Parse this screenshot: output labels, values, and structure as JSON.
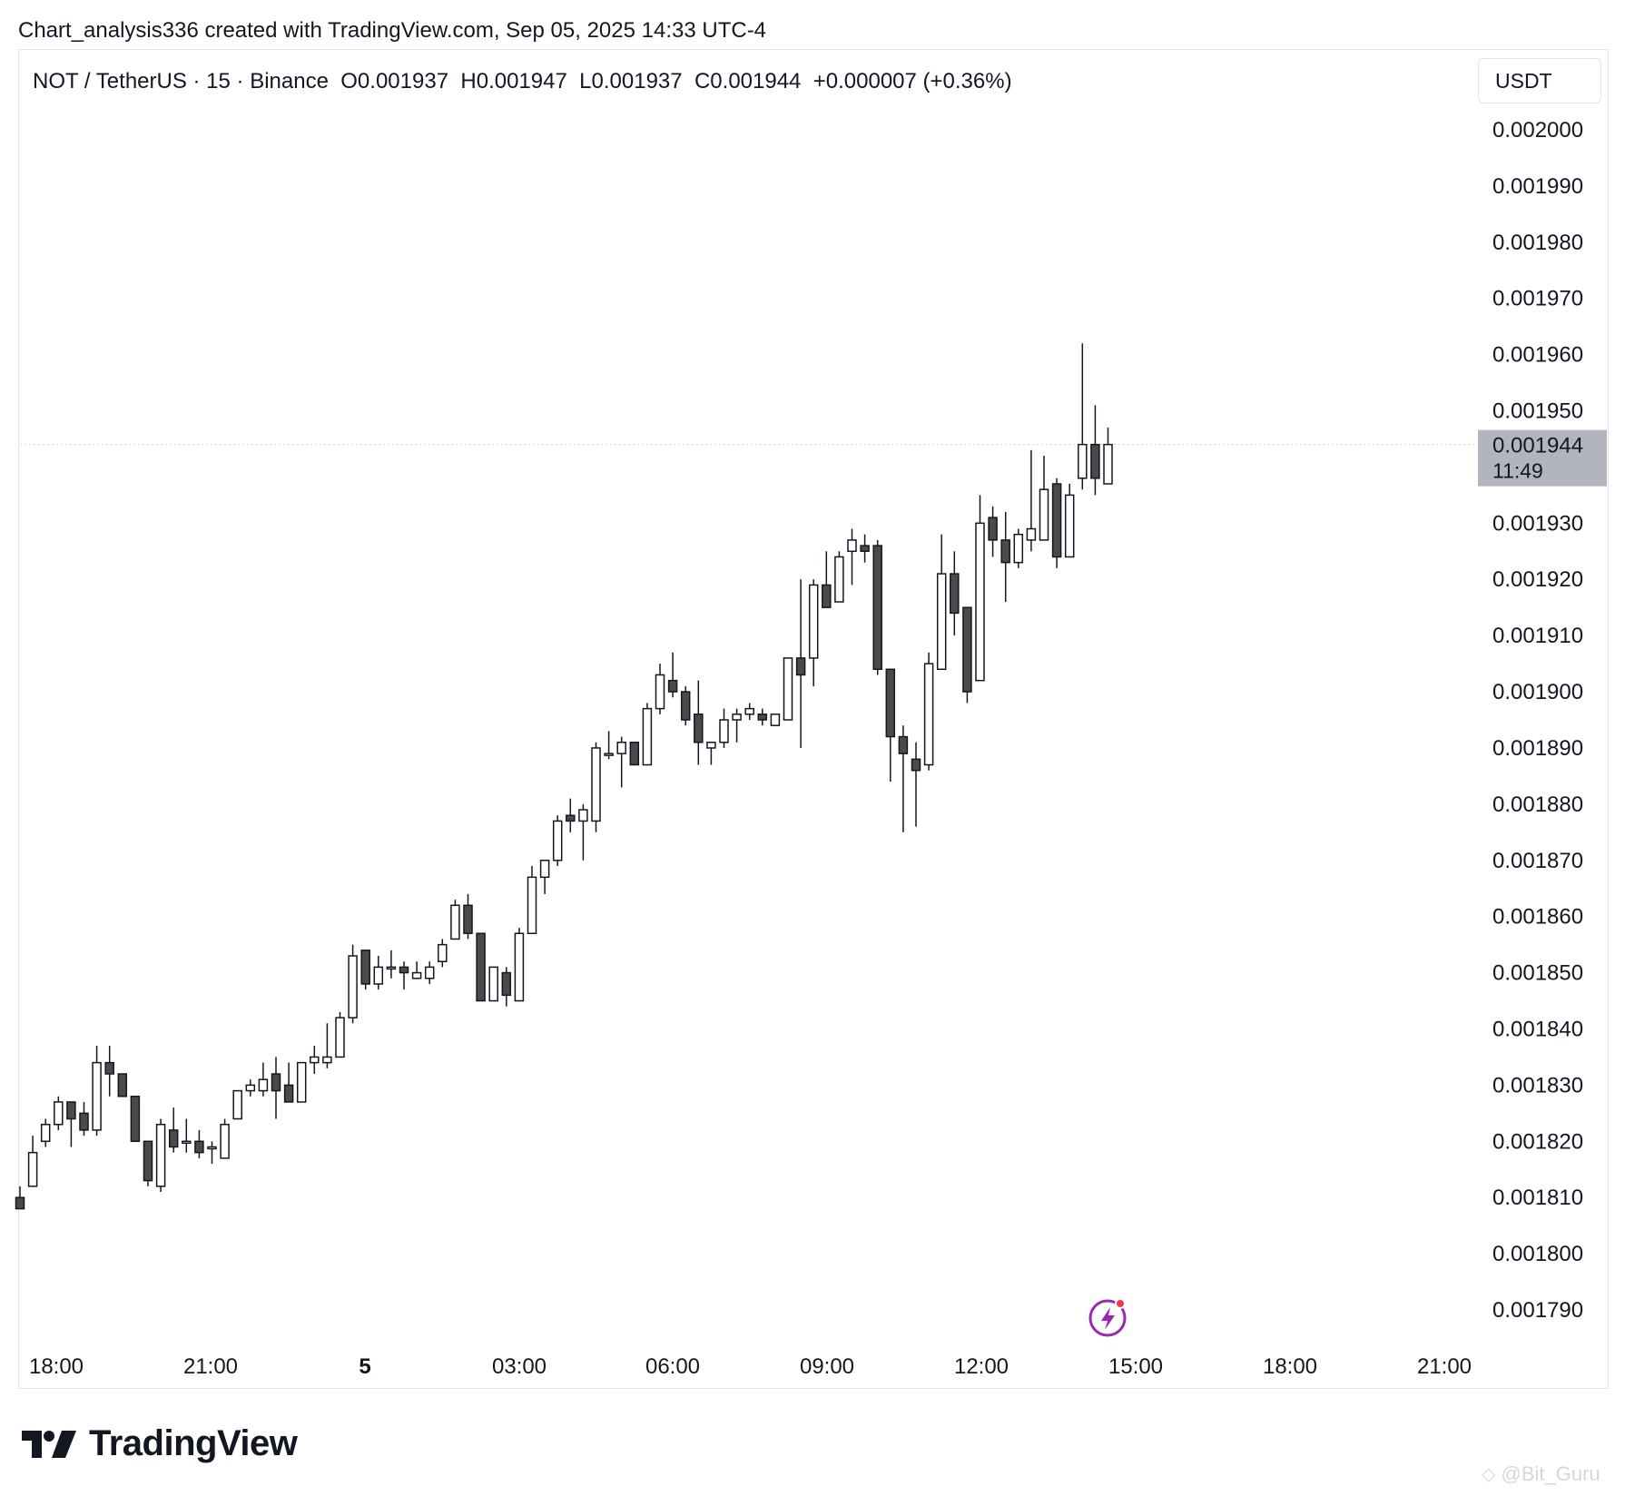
{
  "header": {
    "credit": "Chart_analysis336 created with TradingView.com, Sep 05, 2025 14:33 UTC-4"
  },
  "legend": {
    "symbol": "NOT / TetherUS · 15 · Binance",
    "open": "O0.001937",
    "high": "H0.001947",
    "low": "L0.001937",
    "close": "C0.001944",
    "change": "+0.000007 (+0.36%)"
  },
  "currency_label": "USDT",
  "price_tag": {
    "price": "0.001944",
    "countdown": "11:49"
  },
  "footer": {
    "brand": "TradingView",
    "watermark": "@Bit_Guru"
  },
  "icons": {
    "logo": "tradingview-logo-icon",
    "bolt": "lightning-bolt-icon"
  },
  "colors": {
    "up_fill": "#ffffff",
    "down_fill": "#4a4a4a",
    "outline": "#131722",
    "price_tag_bg": "#b2b5be",
    "bolt_accent": "#9c27b0",
    "bolt_dot": "#f23645"
  },
  "chart_data": {
    "type": "candlestick",
    "timeframe": "15",
    "ylim": [
      0.001785,
      0.002003
    ],
    "y_ticks": [
      "0.002000",
      "0.001990",
      "0.001980",
      "0.001970",
      "0.001960",
      "0.001950",
      "0.001930",
      "0.001920",
      "0.001910",
      "0.001900",
      "0.001890",
      "0.001880",
      "0.001870",
      "0.001860",
      "0.001850",
      "0.001840",
      "0.001830",
      "0.001820",
      "0.001810",
      "0.001800",
      "0.001790"
    ],
    "x_ticks": [
      "18:00",
      "21:00",
      "5",
      "03:00",
      "06:00",
      "09:00",
      "12:00",
      "15:00",
      "18:00",
      "21:00"
    ],
    "grid": false,
    "last_price": 0.001944,
    "candles": [
      {
        "o": 0.00181,
        "h": 0.001812,
        "l": 0.001808,
        "c": 0.001808
      },
      {
        "o": 0.001812,
        "h": 0.001821,
        "l": 0.001812,
        "c": 0.001818
      },
      {
        "o": 0.00182,
        "h": 0.001824,
        "l": 0.001819,
        "c": 0.001823
      },
      {
        "o": 0.001823,
        "h": 0.001828,
        "l": 0.001822,
        "c": 0.001827
      },
      {
        "o": 0.001827,
        "h": 0.001827,
        "l": 0.001819,
        "c": 0.001824
      },
      {
        "o": 0.001825,
        "h": 0.001827,
        "l": 0.001821,
        "c": 0.001822
      },
      {
        "o": 0.001822,
        "h": 0.001837,
        "l": 0.001821,
        "c": 0.001834
      },
      {
        "o": 0.001834,
        "h": 0.001837,
        "l": 0.001828,
        "c": 0.001832
      },
      {
        "o": 0.001832,
        "h": 0.001832,
        "l": 0.001828,
        "c": 0.001828
      },
      {
        "o": 0.001828,
        "h": 0.001828,
        "l": 0.00182,
        "c": 0.00182
      },
      {
        "o": 0.00182,
        "h": 0.00182,
        "l": 0.001812,
        "c": 0.001813
      },
      {
        "o": 0.001812,
        "h": 0.001824,
        "l": 0.001811,
        "c": 0.001823
      },
      {
        "o": 0.001822,
        "h": 0.001826,
        "l": 0.001818,
        "c": 0.001819
      },
      {
        "o": 0.00182,
        "h": 0.001824,
        "l": 0.001818,
        "c": 0.00182
      },
      {
        "o": 0.00182,
        "h": 0.001822,
        "l": 0.001817,
        "c": 0.001818
      },
      {
        "o": 0.001819,
        "h": 0.00182,
        "l": 0.001816,
        "c": 0.001819
      },
      {
        "o": 0.001817,
        "h": 0.001824,
        "l": 0.001817,
        "c": 0.001823
      },
      {
        "o": 0.001824,
        "h": 0.001829,
        "l": 0.001824,
        "c": 0.001829
      },
      {
        "o": 0.001829,
        "h": 0.001831,
        "l": 0.001828,
        "c": 0.00183
      },
      {
        "o": 0.001829,
        "h": 0.001834,
        "l": 0.001828,
        "c": 0.001831
      },
      {
        "o": 0.001832,
        "h": 0.001835,
        "l": 0.001824,
        "c": 0.001829
      },
      {
        "o": 0.00183,
        "h": 0.001834,
        "l": 0.001827,
        "c": 0.001827
      },
      {
        "o": 0.001827,
        "h": 0.001834,
        "l": 0.001827,
        "c": 0.001834
      },
      {
        "o": 0.001834,
        "h": 0.001837,
        "l": 0.001832,
        "c": 0.001835
      },
      {
        "o": 0.001834,
        "h": 0.001841,
        "l": 0.001833,
        "c": 0.001835
      },
      {
        "o": 0.001835,
        "h": 0.001843,
        "l": 0.001835,
        "c": 0.001842
      },
      {
        "o": 0.001842,
        "h": 0.001855,
        "l": 0.001841,
        "c": 0.001853
      },
      {
        "o": 0.001854,
        "h": 0.001854,
        "l": 0.001847,
        "c": 0.001848
      },
      {
        "o": 0.001848,
        "h": 0.001853,
        "l": 0.001847,
        "c": 0.001851
      },
      {
        "o": 0.001851,
        "h": 0.001854,
        "l": 0.001849,
        "c": 0.001851
      },
      {
        "o": 0.001851,
        "h": 0.001852,
        "l": 0.001847,
        "c": 0.00185
      },
      {
        "o": 0.001849,
        "h": 0.001852,
        "l": 0.001849,
        "c": 0.00185
      },
      {
        "o": 0.001849,
        "h": 0.001852,
        "l": 0.001848,
        "c": 0.001851
      },
      {
        "o": 0.001852,
        "h": 0.001856,
        "l": 0.001851,
        "c": 0.001855
      },
      {
        "o": 0.001856,
        "h": 0.001863,
        "l": 0.001856,
        "c": 0.001862
      },
      {
        "o": 0.001862,
        "h": 0.001864,
        "l": 0.001856,
        "c": 0.001857
      },
      {
        "o": 0.001857,
        "h": 0.001857,
        "l": 0.001845,
        "c": 0.001845
      },
      {
        "o": 0.001845,
        "h": 0.001851,
        "l": 0.001845,
        "c": 0.001851
      },
      {
        "o": 0.00185,
        "h": 0.001851,
        "l": 0.001844,
        "c": 0.001846
      },
      {
        "o": 0.001845,
        "h": 0.001858,
        "l": 0.001845,
        "c": 0.001857
      },
      {
        "o": 0.001857,
        "h": 0.001869,
        "l": 0.001857,
        "c": 0.001867
      },
      {
        "o": 0.001867,
        "h": 0.00187,
        "l": 0.001864,
        "c": 0.00187
      },
      {
        "o": 0.00187,
        "h": 0.001878,
        "l": 0.001869,
        "c": 0.001877
      },
      {
        "o": 0.001878,
        "h": 0.001881,
        "l": 0.001875,
        "c": 0.001877
      },
      {
        "o": 0.001877,
        "h": 0.00188,
        "l": 0.00187,
        "c": 0.001879
      },
      {
        "o": 0.001877,
        "h": 0.001891,
        "l": 0.001875,
        "c": 0.00189
      },
      {
        "o": 0.001889,
        "h": 0.001893,
        "l": 0.001888,
        "c": 0.001889
      },
      {
        "o": 0.001889,
        "h": 0.001892,
        "l": 0.001883,
        "c": 0.001891
      },
      {
        "o": 0.001891,
        "h": 0.001891,
        "l": 0.001887,
        "c": 0.001887
      },
      {
        "o": 0.001887,
        "h": 0.001898,
        "l": 0.001887,
        "c": 0.001897
      },
      {
        "o": 0.001897,
        "h": 0.001905,
        "l": 0.001896,
        "c": 0.001903
      },
      {
        "o": 0.001902,
        "h": 0.001907,
        "l": 0.001899,
        "c": 0.0019
      },
      {
        "o": 0.0019,
        "h": 0.001901,
        "l": 0.001894,
        "c": 0.001895
      },
      {
        "o": 0.001896,
        "h": 0.001902,
        "l": 0.001887,
        "c": 0.001891
      },
      {
        "o": 0.00189,
        "h": 0.001891,
        "l": 0.001887,
        "c": 0.001891
      },
      {
        "o": 0.001891,
        "h": 0.001897,
        "l": 0.00189,
        "c": 0.001895
      },
      {
        "o": 0.001895,
        "h": 0.001897,
        "l": 0.001891,
        "c": 0.001896
      },
      {
        "o": 0.001896,
        "h": 0.001898,
        "l": 0.001895,
        "c": 0.001897
      },
      {
        "o": 0.001896,
        "h": 0.001897,
        "l": 0.001894,
        "c": 0.001895
      },
      {
        "o": 0.001894,
        "h": 0.001896,
        "l": 0.001894,
        "c": 0.001896
      },
      {
        "o": 0.001895,
        "h": 0.001906,
        "l": 0.001895,
        "c": 0.001906
      },
      {
        "o": 0.001906,
        "h": 0.00192,
        "l": 0.00189,
        "c": 0.001903
      },
      {
        "o": 0.001906,
        "h": 0.00192,
        "l": 0.001901,
        "c": 0.001919
      },
      {
        "o": 0.001919,
        "h": 0.001925,
        "l": 0.001915,
        "c": 0.001915
      },
      {
        "o": 0.001916,
        "h": 0.001925,
        "l": 0.001916,
        "c": 0.001924
      },
      {
        "o": 0.001925,
        "h": 0.001929,
        "l": 0.001919,
        "c": 0.001927
      },
      {
        "o": 0.001926,
        "h": 0.001928,
        "l": 0.001923,
        "c": 0.001925
      },
      {
        "o": 0.001926,
        "h": 0.001927,
        "l": 0.001903,
        "c": 0.001904
      },
      {
        "o": 0.001904,
        "h": 0.001904,
        "l": 0.001884,
        "c": 0.001892
      },
      {
        "o": 0.001892,
        "h": 0.001894,
        "l": 0.001875,
        "c": 0.001889
      },
      {
        "o": 0.001888,
        "h": 0.001891,
        "l": 0.001876,
        "c": 0.001886
      },
      {
        "o": 0.001887,
        "h": 0.001907,
        "l": 0.001886,
        "c": 0.001905
      },
      {
        "o": 0.001904,
        "h": 0.001928,
        "l": 0.001904,
        "c": 0.001921
      },
      {
        "o": 0.001921,
        "h": 0.001925,
        "l": 0.00191,
        "c": 0.001914
      },
      {
        "o": 0.001915,
        "h": 0.001915,
        "l": 0.001898,
        "c": 0.0019
      },
      {
        "o": 0.001902,
        "h": 0.001935,
        "l": 0.001902,
        "c": 0.00193
      },
      {
        "o": 0.001931,
        "h": 0.001933,
        "l": 0.001924,
        "c": 0.001927
      },
      {
        "o": 0.001927,
        "h": 0.001932,
        "l": 0.001916,
        "c": 0.001923
      },
      {
        "o": 0.001923,
        "h": 0.001929,
        "l": 0.001922,
        "c": 0.001928
      },
      {
        "o": 0.001927,
        "h": 0.001943,
        "l": 0.001925,
        "c": 0.001929
      },
      {
        "o": 0.001927,
        "h": 0.001942,
        "l": 0.001927,
        "c": 0.001936
      },
      {
        "o": 0.001937,
        "h": 0.001938,
        "l": 0.001922,
        "c": 0.001924
      },
      {
        "o": 0.001924,
        "h": 0.001937,
        "l": 0.001924,
        "c": 0.001935
      },
      {
        "o": 0.001938,
        "h": 0.001962,
        "l": 0.001936,
        "c": 0.001944
      },
      {
        "o": 0.001944,
        "h": 0.001951,
        "l": 0.001935,
        "c": 0.001938
      },
      {
        "o": 0.001937,
        "h": 0.001947,
        "l": 0.001937,
        "c": 0.001944
      }
    ]
  }
}
